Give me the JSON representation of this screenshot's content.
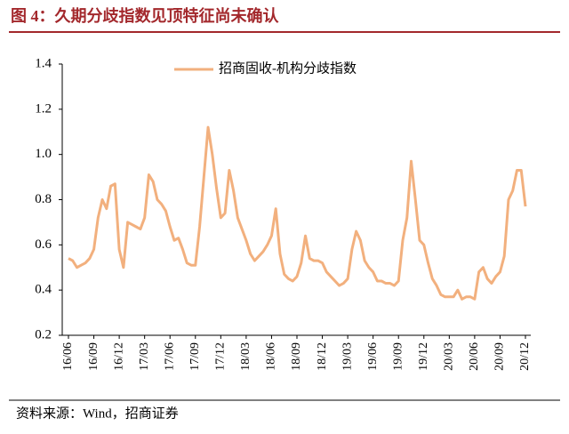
{
  "chart_data": {
    "type": "line",
    "title": "图 4：久期分歧指数见顶特征尚未确认",
    "source": "资料来源：Wind，招商证券",
    "categories": [
      "16/06",
      null,
      null,
      null,
      null,
      null,
      "16/09",
      null,
      null,
      null,
      null,
      null,
      "16/12",
      null,
      null,
      null,
      null,
      null,
      "17/03",
      null,
      null,
      null,
      null,
      null,
      "17/06",
      null,
      null,
      null,
      null,
      null,
      "17/09",
      null,
      null,
      null,
      null,
      null,
      "17/12",
      null,
      null,
      null,
      null,
      null,
      "18/03",
      null,
      null,
      null,
      null,
      null,
      "18/06",
      null,
      null,
      null,
      null,
      null,
      "18/09",
      null,
      null,
      null,
      null,
      null,
      "18/12",
      null,
      null,
      null,
      null,
      null,
      "19/03",
      null,
      null,
      null,
      null,
      null,
      "19/06",
      null,
      null,
      null,
      null,
      null,
      "19/09",
      null,
      null,
      null,
      null,
      null,
      "19/12",
      null,
      null,
      null,
      null,
      null,
      "20/03",
      null,
      null,
      null,
      null,
      null,
      "20/06",
      null,
      null,
      null,
      null,
      null,
      "20/09",
      null,
      null,
      null,
      null,
      null,
      "20/12"
    ],
    "series": [
      {
        "name": "招商固收-机构分歧指数",
        "color": "#f2b07e",
        "values": [
          0.54,
          0.53,
          0.5,
          0.51,
          0.52,
          0.54,
          0.58,
          0.72,
          0.8,
          0.76,
          0.86,
          0.87,
          0.58,
          0.5,
          0.7,
          0.69,
          0.68,
          0.67,
          0.72,
          0.91,
          0.88,
          0.8,
          0.78,
          0.75,
          0.68,
          0.62,
          0.63,
          0.58,
          0.52,
          0.51,
          0.51,
          0.68,
          0.9,
          1.12,
          1.0,
          0.85,
          0.72,
          0.74,
          0.93,
          0.84,
          0.72,
          0.67,
          0.62,
          0.56,
          0.53,
          0.55,
          0.57,
          0.6,
          0.64,
          0.76,
          0.56,
          0.47,
          0.45,
          0.44,
          0.46,
          0.52,
          0.64,
          0.54,
          0.53,
          0.53,
          0.52,
          0.48,
          0.46,
          0.44,
          0.42,
          0.43,
          0.45,
          0.58,
          0.66,
          0.62,
          0.53,
          0.5,
          0.48,
          0.44,
          0.44,
          0.43,
          0.43,
          0.42,
          0.44,
          0.62,
          0.72,
          0.97,
          0.8,
          0.62,
          0.6,
          0.52,
          0.45,
          0.42,
          0.38,
          0.37,
          0.37,
          0.37,
          0.4,
          0.36,
          0.37,
          0.37,
          0.36,
          0.48,
          0.5,
          0.45,
          0.43,
          0.46,
          0.48,
          0.55,
          0.8,
          0.84,
          0.93,
          0.93,
          0.77
        ]
      }
    ],
    "ylim": [
      0.2,
      1.4
    ],
    "yticks": [
      0.2,
      0.4,
      0.6,
      0.8,
      {
        "value": 1,
        "label": "1.0"
      },
      1.2,
      1.4
    ],
    "legend": "top"
  }
}
